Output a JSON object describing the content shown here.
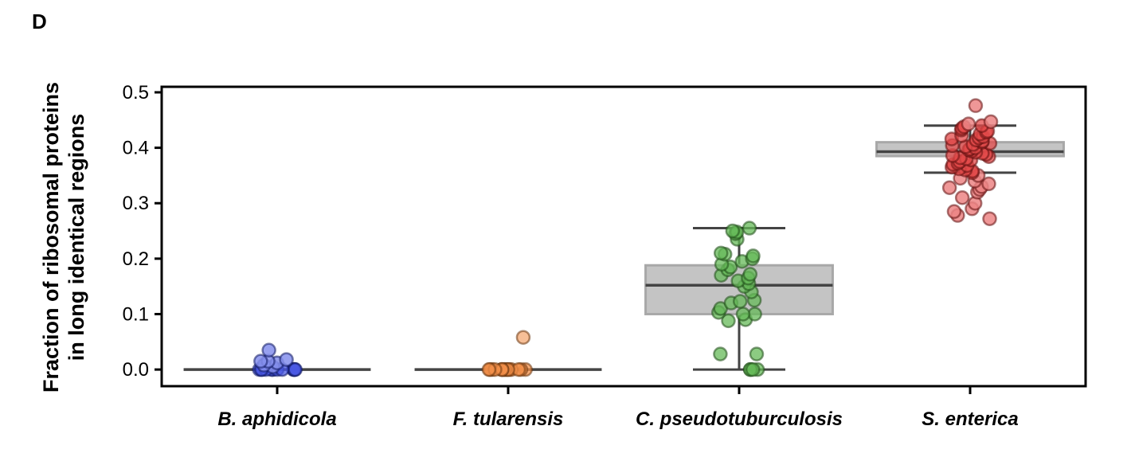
{
  "panel_label": "D",
  "chart_data": {
    "type": "box",
    "ylabel_line1": "Fraction of ribosomal proteins",
    "ylabel_line2": "in long identical regions",
    "ylim": [
      -0.03,
      0.51
    ],
    "yticks": [
      0.0,
      0.1,
      0.2,
      0.3,
      0.4,
      0.5
    ],
    "ytick_labels": [
      "0.0",
      "0.1",
      "0.2",
      "0.3",
      "0.4",
      "0.5"
    ],
    "categories": [
      "B. aphidicola",
      "F. tularensis",
      "C. pseudotuburculosis",
      "S. enterica"
    ],
    "boxes": [
      {
        "category": "B. aphidicola",
        "color": "#2233dd",
        "q1": 0.0,
        "median": 0.0,
        "q3": 0.0,
        "whisker_low": 0.0,
        "whisker_high": 0.0,
        "points": [
          0.0,
          0.0,
          0.0,
          0.0,
          0.0,
          0.0,
          0.0,
          0.0,
          0.0,
          0.0,
          0.0,
          0.0,
          0.005,
          0.008,
          0.012,
          0.015,
          0.015,
          0.018,
          0.035
        ]
      },
      {
        "category": "F. tularensis",
        "color": "#ee7722",
        "q1": 0.0,
        "median": 0.0,
        "q3": 0.0,
        "whisker_low": 0.0,
        "whisker_high": 0.0,
        "points": [
          0.0,
          0.0,
          0.0,
          0.0,
          0.0,
          0.0,
          0.0,
          0.0,
          0.0,
          0.0,
          0.0,
          0.0,
          0.0,
          0.0,
          0.0,
          0.0,
          0.058
        ]
      },
      {
        "category": "C. pseudotuburculosis",
        "color": "#44aa33",
        "q1": 0.1,
        "median": 0.152,
        "q3": 0.188,
        "whisker_low": 0.0,
        "whisker_high": 0.255,
        "points": [
          0.0,
          0.0,
          0.0,
          0.0,
          0.028,
          0.028,
          0.088,
          0.09,
          0.1,
          0.1,
          0.103,
          0.11,
          0.12,
          0.123,
          0.125,
          0.14,
          0.15,
          0.155,
          0.16,
          0.165,
          0.17,
          0.172,
          0.18,
          0.185,
          0.19,
          0.195,
          0.2,
          0.205,
          0.208,
          0.21,
          0.235,
          0.245,
          0.248,
          0.25,
          0.255
        ]
      },
      {
        "category": "S. enterica",
        "color": "#dd2222",
        "q1": 0.385,
        "median": 0.393,
        "q3": 0.41,
        "whisker_low": 0.355,
        "whisker_high": 0.44,
        "points": [
          0.272,
          0.278,
          0.285,
          0.29,
          0.3,
          0.31,
          0.32,
          0.325,
          0.328,
          0.33,
          0.335,
          0.34,
          0.345,
          0.35,
          0.355,
          0.358,
          0.36,
          0.362,
          0.365,
          0.368,
          0.37,
          0.372,
          0.375,
          0.378,
          0.38,
          0.382,
          0.384,
          0.386,
          0.388,
          0.39,
          0.392,
          0.394,
          0.396,
          0.398,
          0.4,
          0.402,
          0.404,
          0.406,
          0.408,
          0.41,
          0.412,
          0.414,
          0.416,
          0.418,
          0.42,
          0.422,
          0.425,
          0.428,
          0.43,
          0.432,
          0.435,
          0.438,
          0.44,
          0.443,
          0.447,
          0.476
        ]
      }
    ],
    "grid": false,
    "legend": "none"
  }
}
